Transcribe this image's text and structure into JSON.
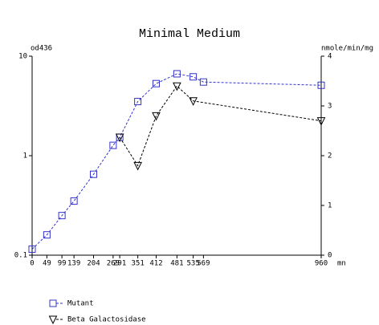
{
  "chart_data": {
    "type": "line",
    "title": "Minimal Medium",
    "y_label": "od436",
    "y2_label": "nmole/min/mg",
    "x_label": "mn",
    "x": [
      0,
      49,
      99,
      139,
      204,
      269,
      291,
      351,
      412,
      481,
      535,
      569,
      960
    ],
    "xlim": [
      0,
      960
    ],
    "xticks": [
      0,
      49,
      99,
      139,
      204,
      269,
      291,
      351,
      412,
      481,
      535,
      569,
      960
    ],
    "ylim": [
      0.1,
      10
    ],
    "yscale": "log",
    "yticks": [
      0.1,
      1,
      10
    ],
    "y2lim": [
      0,
      4
    ],
    "y2ticks": [
      0,
      1,
      2,
      3,
      4
    ],
    "legend": "bottom-left",
    "series": [
      {
        "name": "Mutant",
        "color": "#3333cc",
        "marker": "square",
        "values": [
          0.115,
          0.16,
          0.25,
          0.35,
          0.65,
          1.27,
          1.53,
          3.5,
          5.3,
          6.65,
          6.2,
          5.5,
          5.1
        ]
      },
      {
        "name": "Beta Galactosidase",
        "color": "#000000",
        "marker": "triangle",
        "axis": "y2",
        "x": [
          291,
          351,
          412,
          481,
          535,
          960
        ],
        "values": [
          2.37,
          1.8,
          2.8,
          3.4,
          3.1,
          2.7
        ]
      }
    ]
  }
}
